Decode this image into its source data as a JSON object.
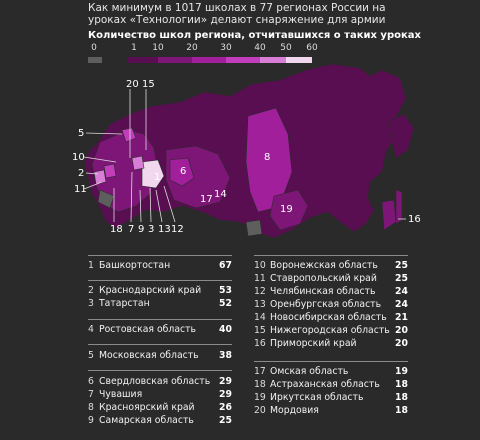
{
  "title": "Как минимум в 1017 школах в 77 регионах России на уроках «Технологии» делают снаряжение для армии",
  "subtitle": "Количество школ региона, отчитавшихся о таких уроках",
  "colors": {
    "background": "#2a2a2a",
    "scale": [
      "#5e5e5e",
      "#5a0e52",
      "#7d1676",
      "#a21f9b",
      "#c13dbc",
      "#d97ed6",
      "#f1d8ef"
    ]
  },
  "legend": {
    "ticks": [
      "0",
      "1",
      "10",
      "20",
      "30",
      "40",
      "50",
      "60"
    ]
  },
  "map_labels": [
    "20",
    "15",
    "5",
    "10",
    "2",
    "11",
    "6",
    "8",
    "17",
    "14",
    "19",
    "16",
    "18",
    "7",
    "9",
    "3",
    "13",
    "12",
    "1"
  ],
  "ranking": [
    {
      "rank": "1",
      "name": "Башкортостан",
      "value": "67"
    },
    {
      "rank": "2",
      "name": "Краснодарский край",
      "value": "53"
    },
    {
      "rank": "3",
      "name": "Татарстан",
      "value": "52"
    },
    {
      "rank": "4",
      "name": "Ростовская область",
      "value": "40"
    },
    {
      "rank": "5",
      "name": "Московская область",
      "value": "38"
    },
    {
      "rank": "6",
      "name": "Свердловская область",
      "value": "29"
    },
    {
      "rank": "7",
      "name": "Чувашия",
      "value": "29"
    },
    {
      "rank": "8",
      "name": "Красноярский край",
      "value": "26"
    },
    {
      "rank": "9",
      "name": "Самарская область",
      "value": "25"
    },
    {
      "rank": "10",
      "name": "Воронежская область",
      "value": "25"
    },
    {
      "rank": "11",
      "name": "Ставропольский край",
      "value": "25"
    },
    {
      "rank": "12",
      "name": "Челябинская область",
      "value": "24"
    },
    {
      "rank": "13",
      "name": "Оренбургская область",
      "value": "24"
    },
    {
      "rank": "14",
      "name": "Новосибирская область",
      "value": "21"
    },
    {
      "rank": "15",
      "name": "Нижегородская область",
      "value": "20"
    },
    {
      "rank": "16",
      "name": "Приморский край",
      "value": "20"
    },
    {
      "rank": "17",
      "name": "Омская область",
      "value": "19"
    },
    {
      "rank": "18",
      "name": "Астраханская область",
      "value": "18"
    },
    {
      "rank": "19",
      "name": "Иркутская область",
      "value": "18"
    },
    {
      "rank": "20",
      "name": "Мордовия",
      "value": "18"
    }
  ]
}
